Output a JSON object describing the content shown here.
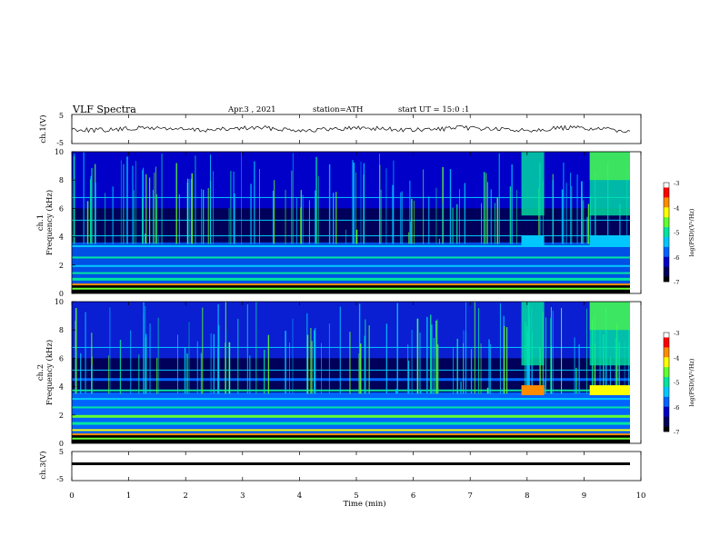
{
  "header": {
    "title": "VLF Spectra",
    "date": "Apr.3 , 2021",
    "station": "station=ATH",
    "start": "start UT = 15:0 :1"
  },
  "colors": {
    "colormap": [
      "#000000",
      "#00005a",
      "#0000c8",
      "#0064ff",
      "#00c8ff",
      "#00e6a0",
      "#64ff32",
      "#ffff00",
      "#ff8c00",
      "#ff0000",
      "#ffffff"
    ],
    "trace": "#000000",
    "axis": "#000000"
  },
  "chart_data": [
    {
      "id": "ch1-waveform",
      "type": "line",
      "ylabel": "ch.1(V)",
      "ylim": [
        -5,
        5
      ],
      "yticks": [
        "5",
        "-5"
      ],
      "xlim": [
        0,
        10
      ],
      "series": [
        {
          "values_description_level": 0
        }
      ]
    },
    {
      "id": "ch1-spectrogram",
      "type": "heatmap",
      "ylabel": "ch.1\nFrequency (kHz)",
      "ylabel_line1": "ch.1",
      "ylabel_line2": "Frequency (kHz)",
      "ylim": [
        0,
        10
      ],
      "yticks": [
        "0",
        "2",
        "4",
        "6",
        "8",
        "10"
      ],
      "xlim": [
        0,
        10
      ],
      "colorbar": {
        "label": "log(PSD)(V²/Hz)",
        "range": [
          -7,
          -3
        ],
        "ticks": [
          "-3",
          "-4",
          "-5",
          "-6",
          "-7"
        ]
      }
    },
    {
      "id": "ch2-spectrogram",
      "type": "heatmap",
      "ylabel_line1": "ch.2",
      "ylabel_line2": "Frequency (kHz)",
      "ylim": [
        0,
        10
      ],
      "yticks": [
        "0",
        "2",
        "4",
        "6",
        "8",
        "10"
      ],
      "xlim": [
        0,
        10
      ],
      "colorbar": {
        "label": "log(PSD)(V²/Hz)",
        "range": [
          -7,
          -3
        ],
        "ticks": [
          "-3",
          "-4",
          "-5",
          "-6",
          "-7"
        ]
      }
    },
    {
      "id": "ch3-waveform",
      "type": "line",
      "ylabel": "ch.3(V)",
      "ylim": [
        -5,
        5
      ],
      "yticks": [
        "5",
        "-5"
      ],
      "xlim": [
        0,
        10
      ],
      "series": [
        {
          "level": -2
        }
      ]
    }
  ],
  "xaxis": {
    "label": "Time (min)",
    "ticks": [
      "0",
      "1",
      "2",
      "3",
      "4",
      "5",
      "6",
      "7",
      "8",
      "9",
      "10"
    ]
  }
}
